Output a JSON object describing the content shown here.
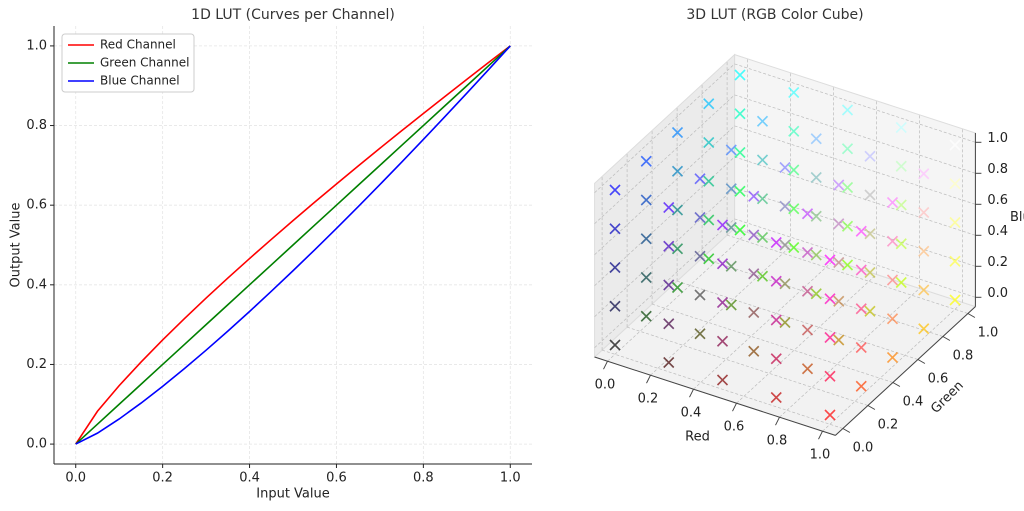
{
  "chart_data": [
    {
      "type": "line",
      "title": "1D LUT (Curves per Channel)",
      "xlabel": "Input Value",
      "ylabel": "Output Value",
      "x": [
        0,
        0.05,
        0.1,
        0.15,
        0.2,
        0.25,
        0.3,
        0.35,
        0.4,
        0.45,
        0.5,
        0.55,
        0.6,
        0.65,
        0.7,
        0.75,
        0.8,
        0.85,
        0.9,
        0.95,
        1
      ],
      "series": [
        {
          "name": "Red Channel",
          "color": "#ff0000",
          "values": [
            0,
            0.0824,
            0.1468,
            0.2058,
            0.2615,
            0.315,
            0.3667,
            0.4169,
            0.466,
            0.514,
            0.5612,
            0.6076,
            0.6533,
            0.6984,
            0.7429,
            0.7868,
            0.8303,
            0.8734,
            0.916,
            0.9582,
            1
          ]
        },
        {
          "name": "Green Channel",
          "color": "#008000",
          "values": [
            0,
            0.05,
            0.1,
            0.15,
            0.2,
            0.25,
            0.3,
            0.35,
            0.4,
            0.45,
            0.5,
            0.55,
            0.6,
            0.65,
            0.7,
            0.75,
            0.8,
            0.85,
            0.9,
            0.95,
            1
          ]
        },
        {
          "name": "Blue Channel",
          "color": "#0000ff",
          "values": [
            0,
            0.0275,
            0.0631,
            0.1027,
            0.145,
            0.1895,
            0.2358,
            0.2837,
            0.333,
            0.3836,
            0.4353,
            0.488,
            0.5417,
            0.5963,
            0.6518,
            0.7081,
            0.7651,
            0.8228,
            0.8812,
            0.9403,
            1
          ]
        }
      ],
      "xlim": [
        -0.05,
        1.05
      ],
      "ylim": [
        -0.05,
        1.05
      ],
      "xticks": [
        {
          "value": 0,
          "label": "0.0"
        },
        0.2,
        0.4,
        0.6,
        0.8,
        {
          "value": 1,
          "label": "1.0"
        }
      ],
      "yticks": [
        {
          "value": 0,
          "label": "0.0"
        },
        0.2,
        0.4,
        0.6,
        0.8,
        {
          "value": 1,
          "label": "1.0"
        }
      ],
      "grid": true,
      "legend": "upper left"
    },
    {
      "type": "scatter3d",
      "title": "3D LUT (RGB Color Cube)",
      "xlabel": "Red",
      "ylabel": "Green",
      "zlabel": "Blue",
      "x": [
        0,
        0,
        0,
        0,
        0,
        0,
        0,
        0,
        0,
        0,
        0,
        0,
        0,
        0,
        0,
        0,
        0,
        0,
        0,
        0,
        0,
        0,
        0,
        0,
        0,
        0.25,
        0.25,
        0.25,
        0.25,
        0.25,
        0.25,
        0.25,
        0.25,
        0.25,
        0.25,
        0.25,
        0.25,
        0.25,
        0.25,
        0.25,
        0.25,
        0.25,
        0.25,
        0.25,
        0.25,
        0.25,
        0.25,
        0.25,
        0.25,
        0.25,
        0.5,
        0.5,
        0.5,
        0.5,
        0.5,
        0.5,
        0.5,
        0.5,
        0.5,
        0.5,
        0.5,
        0.5,
        0.5,
        0.5,
        0.5,
        0.5,
        0.5,
        0.5,
        0.5,
        0.5,
        0.5,
        0.5,
        0.5,
        0.5,
        0.5,
        0.75,
        0.75,
        0.75,
        0.75,
        0.75,
        0.75,
        0.75,
        0.75,
        0.75,
        0.75,
        0.75,
        0.75,
        0.75,
        0.75,
        0.75,
        0.75,
        0.75,
        0.75,
        0.75,
        0.75,
        0.75,
        0.75,
        0.75,
        0.75,
        0.75,
        1,
        1,
        1,
        1,
        1,
        1,
        1,
        1,
        1,
        1,
        1,
        1,
        1,
        1,
        1,
        1,
        1,
        1,
        1,
        1,
        1,
        1,
        1,
        1,
        1
      ],
      "y": [
        0,
        0,
        0,
        0,
        0,
        0.25,
        0.25,
        0.25,
        0.25,
        0.25,
        0.5,
        0.5,
        0.5,
        0.5,
        0.5,
        0.75,
        0.75,
        0.75,
        0.75,
        0.75,
        1,
        1,
        1,
        1,
        1,
        0,
        0,
        0,
        0,
        0,
        0.25,
        0.25,
        0.25,
        0.25,
        0.25,
        0.5,
        0.5,
        0.5,
        0.5,
        0.5,
        0.75,
        0.75,
        0.75,
        0.75,
        0.75,
        1,
        1,
        1,
        1,
        1,
        0,
        0,
        0,
        0,
        0,
        0.25,
        0.25,
        0.25,
        0.25,
        0.25,
        0.5,
        0.5,
        0.5,
        0.5,
        0.5,
        0.75,
        0.75,
        0.75,
        0.75,
        0.75,
        1,
        1,
        1,
        1,
        1,
        0,
        0,
        0,
        0,
        0,
        0.25,
        0.25,
        0.25,
        0.25,
        0.25,
        0.5,
        0.5,
        0.5,
        0.5,
        0.5,
        0.75,
        0.75,
        0.75,
        0.75,
        0.75,
        1,
        1,
        1,
        1,
        1,
        0,
        0,
        0,
        0,
        0,
        0.25,
        0.25,
        0.25,
        0.25,
        0.25,
        0.5,
        0.5,
        0.5,
        0.5,
        0.5,
        0.75,
        0.75,
        0.75,
        0.75,
        0.75,
        1,
        1,
        1,
        1,
        1
      ],
      "z": [
        0,
        0.25,
        0.5,
        0.75,
        1,
        0,
        0.25,
        0.5,
        0.75,
        1,
        0,
        0.25,
        0.5,
        0.75,
        1,
        0,
        0.25,
        0.5,
        0.75,
        1,
        0,
        0.25,
        0.5,
        0.75,
        1,
        0,
        0.25,
        0.5,
        0.75,
        1,
        0,
        0.25,
        0.5,
        0.75,
        1,
        0,
        0.25,
        0.5,
        0.75,
        1,
        0,
        0.25,
        0.5,
        0.75,
        1,
        0,
        0.25,
        0.5,
        0.75,
        1,
        0,
        0.25,
        0.5,
        0.75,
        1,
        0,
        0.25,
        0.5,
        0.75,
        1,
        0,
        0.25,
        0.5,
        0.75,
        1,
        0,
        0.25,
        0.5,
        0.75,
        1,
        0,
        0.25,
        0.5,
        0.75,
        1,
        0,
        0.25,
        0.5,
        0.75,
        1,
        0,
        0.25,
        0.5,
        0.75,
        1,
        0,
        0.25,
        0.5,
        0.75,
        1,
        0,
        0.25,
        0.5,
        0.75,
        1,
        0,
        0.25,
        0.5,
        0.75,
        1,
        0,
        0.25,
        0.5,
        0.75,
        1,
        0,
        0.25,
        0.5,
        0.75,
        1,
        0,
        0.25,
        0.5,
        0.75,
        1,
        0,
        0.25,
        0.5,
        0.75,
        1,
        0,
        0.25,
        0.5,
        0.75,
        1
      ],
      "xlim": [
        0,
        1
      ],
      "ylim": [
        0,
        1
      ],
      "zlim": [
        0,
        1
      ],
      "xticks": [
        {
          "value": 0,
          "label": "0.0"
        },
        0.2,
        0.4,
        0.6,
        0.8,
        {
          "value": 1,
          "label": "1.0"
        }
      ],
      "yticks": [
        {
          "value": 0,
          "label": "0.0"
        },
        0.2,
        0.4,
        0.6,
        0.8,
        {
          "value": 1,
          "label": "1.0"
        }
      ],
      "zticks": [
        {
          "value": 0,
          "label": "0.0"
        },
        0.2,
        0.4,
        0.6,
        0.8,
        {
          "value": 1,
          "label": "1.0"
        }
      ],
      "grid": true
    }
  ]
}
